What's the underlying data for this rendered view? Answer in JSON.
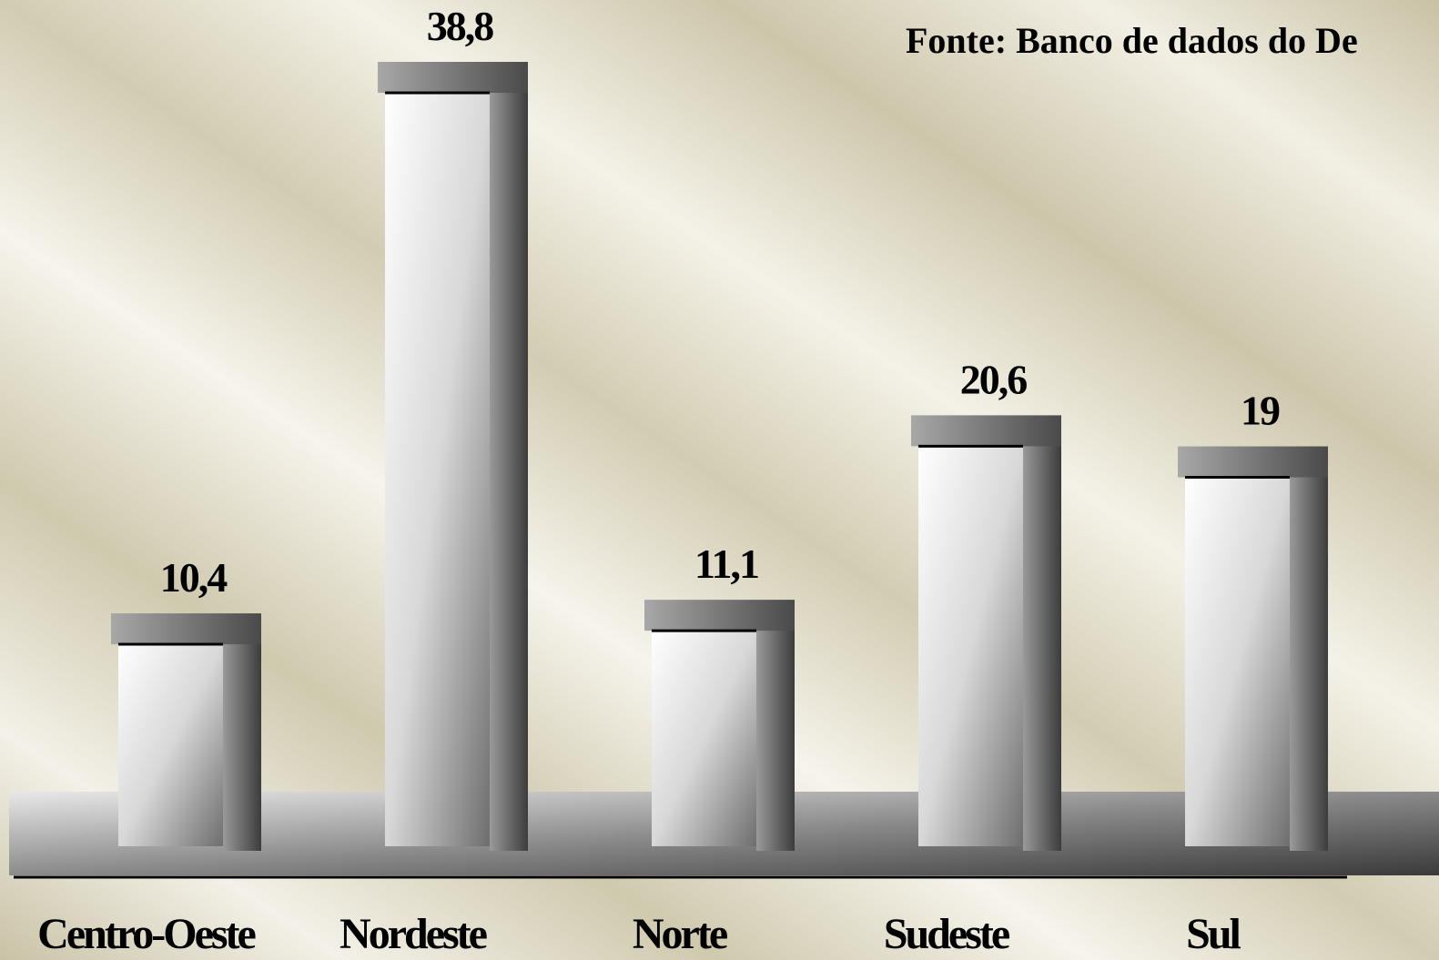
{
  "chart_data": {
    "type": "bar3d",
    "source": "Fonte: Banco de dados do De",
    "categories": [
      "Centro-Oeste",
      "Nordeste",
      "Norte",
      "Sudeste",
      "Sul"
    ],
    "values": [
      10.4,
      38.8,
      11.1,
      20.6,
      19
    ],
    "value_labels": [
      "10,4",
      "38,8",
      "11,1",
      "20,6",
      "19"
    ]
  }
}
